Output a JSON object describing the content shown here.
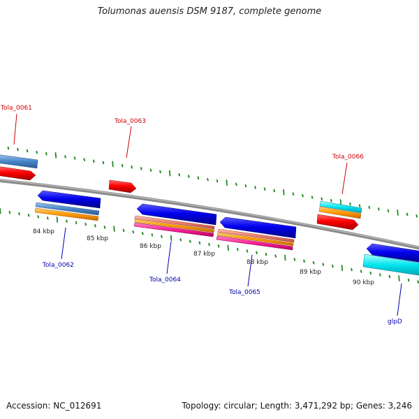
{
  "title": "Tolumonas auensis DSM 9187, complete genome",
  "footer": {
    "accession": "Accession: NC_012691",
    "stats": "Topology: circular; Length: 3,471,292 bp; Genes: 3,246"
  },
  "colors": {
    "backbone": "#8a8a8a",
    "tick": "#228b22",
    "forward_label": "#cc0000",
    "reverse_label": "#0000aa",
    "red": "#ff0000",
    "blue": "#0000ee",
    "steelblue": "#4a86c8",
    "orange": "#ff9900",
    "pink": "#ff3399",
    "salmon": "#f08080",
    "cyan": "#00e5ee"
  },
  "tick_labels": [
    "84 kbp",
    "85 kbp",
    "86 kbp",
    "87 kbp",
    "88 kbp",
    "89 kbp",
    "90 kbp"
  ],
  "genes": [
    {
      "name": "Tola_0061",
      "strand": "forward"
    },
    {
      "name": "Tola_0062",
      "strand": "reverse"
    },
    {
      "name": "Tola_0063",
      "strand": "forward"
    },
    {
      "name": "Tola_0064",
      "strand": "reverse"
    },
    {
      "name": "Tola_0065",
      "strand": "reverse"
    },
    {
      "name": "Tola_0066",
      "strand": "forward"
    },
    {
      "name": "glpD",
      "strand": "reverse"
    }
  ]
}
